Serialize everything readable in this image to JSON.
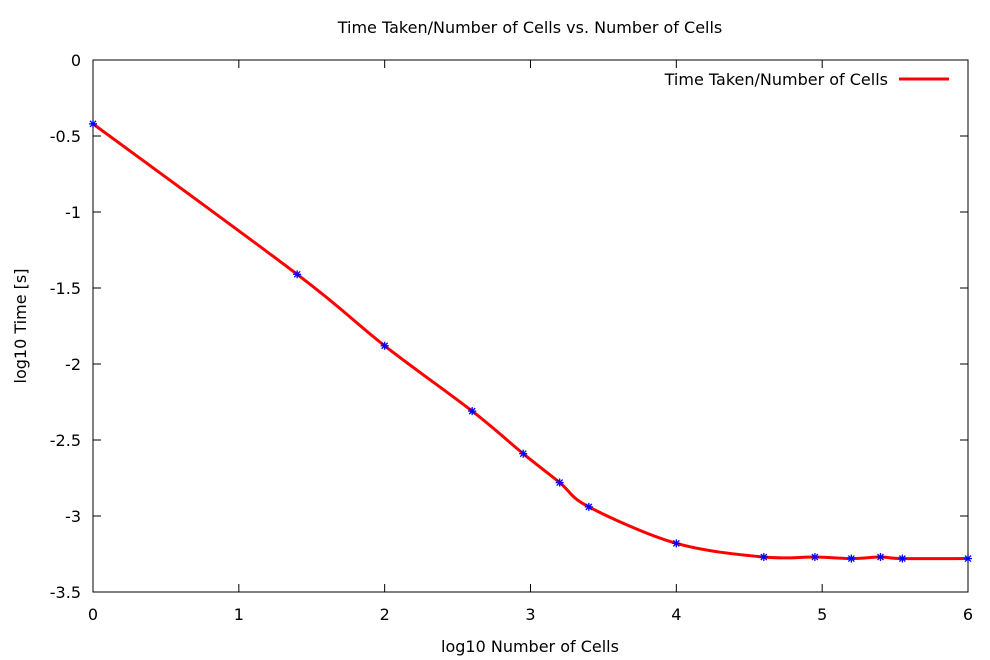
{
  "chart_data": {
    "type": "line",
    "title": "Time Taken/Number of Cells vs. Number of Cells",
    "xlabel": "log10 Number of Cells",
    "ylabel": "log10 Time [s]",
    "xlim": [
      0,
      6
    ],
    "ylim": [
      -3.5,
      0
    ],
    "xticks": [
      0,
      1,
      2,
      3,
      4,
      5,
      6
    ],
    "yticks": [
      0,
      -0.5,
      -1,
      -1.5,
      -2,
      -2.5,
      -3,
      -3.5
    ],
    "xtick_labels": [
      "0",
      "1",
      "2",
      "3",
      "4",
      "5",
      "6"
    ],
    "ytick_labels": [
      "0",
      "-0.5",
      "-1",
      "-1.5",
      "-2",
      "-2.5",
      "-3",
      "-3.5"
    ],
    "grid": false,
    "legend_position": "top-right",
    "line_color": "#ff0000",
    "marker_color": "#0000ff",
    "series": [
      {
        "name": "Time Taken/Number of Cells",
        "x": [
          0,
          1.4,
          2.0,
          2.6,
          2.95,
          3.2,
          3.4,
          4.0,
          4.6,
          4.95,
          5.2,
          5.4,
          5.55,
          6.0
        ],
        "y": [
          -0.42,
          -1.41,
          -1.88,
          -2.31,
          -2.59,
          -2.78,
          -2.94,
          -3.18,
          -3.27,
          -3.27,
          -3.28,
          -3.27,
          -3.28,
          -3.28
        ]
      }
    ]
  }
}
